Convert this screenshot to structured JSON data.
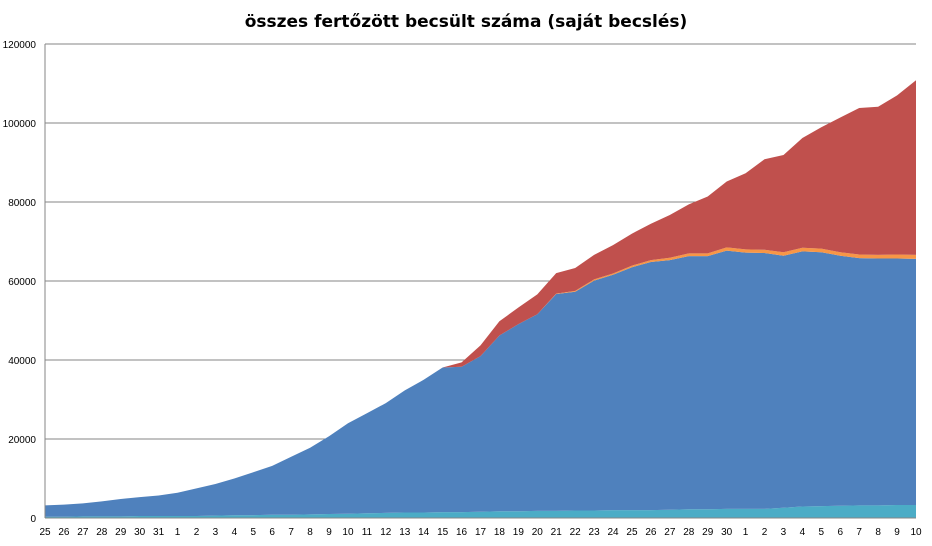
{
  "chart_data": {
    "type": "area",
    "stacked": true,
    "title": "összes fertőzött becsült száma (saját becslés)",
    "xlabel": "",
    "ylabel": "",
    "ylim": [
      0,
      120000
    ],
    "yticks": [
      0,
      20000,
      40000,
      60000,
      80000,
      100000,
      120000
    ],
    "grid": true,
    "legend": "none",
    "categories": [
      "25",
      "26",
      "27",
      "28",
      "29",
      "30",
      "31",
      "1",
      "2",
      "3",
      "4",
      "5",
      "6",
      "7",
      "8",
      "9",
      "10",
      "11",
      "12",
      "13",
      "14",
      "15",
      "16",
      "17",
      "18",
      "19",
      "20",
      "21",
      "22",
      "23",
      "24",
      "25",
      "26",
      "27",
      "28",
      "29",
      "30",
      "1",
      "2",
      "3",
      "4",
      "5",
      "6",
      "7",
      "8",
      "9",
      "10"
    ],
    "series": [
      {
        "color": "#4bacc6",
        "values": [
          300,
          300,
          400,
          400,
          400,
          500,
          500,
          500,
          500,
          600,
          700,
          700,
          800,
          800,
          900,
          1000,
          1100,
          1200,
          1300,
          1400,
          1400,
          1500,
          1500,
          1600,
          1700,
          1700,
          1800,
          1800,
          1900,
          1900,
          2000,
          2000,
          2000,
          2100,
          2200,
          2200,
          2300,
          2300,
          2300,
          2600,
          2900,
          3000,
          3100,
          3200,
          3200,
          3300,
          3300
        ]
      },
      {
        "color": "#4f81bd",
        "values": [
          2900,
          3100,
          3300,
          3800,
          4400,
          4800,
          5200,
          5900,
          7000,
          8000,
          9300,
          10900,
          12400,
          14700,
          16900,
          19700,
          22900,
          25300,
          27800,
          30900,
          33600,
          36600,
          36800,
          39400,
          44500,
          47400,
          49800,
          54900,
          55400,
          58200,
          59600,
          61500,
          62800,
          63200,
          64100,
          64100,
          65400,
          64900,
          64800,
          63800,
          64600,
          64300,
          63300,
          62600,
          62500,
          62400,
          62300
        ]
      },
      {
        "color": "#f79646",
        "values": [
          0,
          0,
          0,
          0,
          0,
          0,
          0,
          0,
          0,
          0,
          0,
          0,
          0,
          0,
          0,
          0,
          0,
          0,
          0,
          0,
          0,
          0,
          0,
          0,
          0,
          0,
          0,
          100,
          200,
          300,
          300,
          400,
          500,
          600,
          700,
          700,
          800,
          800,
          800,
          900,
          900,
          900,
          900,
          900,
          900,
          1000,
          1000
        ]
      },
      {
        "color": "#c0504d",
        "values": [
          0,
          0,
          0,
          0,
          0,
          0,
          0,
          0,
          0,
          0,
          0,
          0,
          0,
          0,
          0,
          0,
          0,
          0,
          0,
          0,
          0,
          0,
          1100,
          2700,
          3600,
          4200,
          5000,
          5200,
          5800,
          6200,
          7200,
          8100,
          9200,
          10800,
          12400,
          14400,
          16700,
          19300,
          22900,
          24600,
          27800,
          30700,
          34100,
          37100,
          37500,
          40300,
          44200
        ]
      }
    ]
  }
}
